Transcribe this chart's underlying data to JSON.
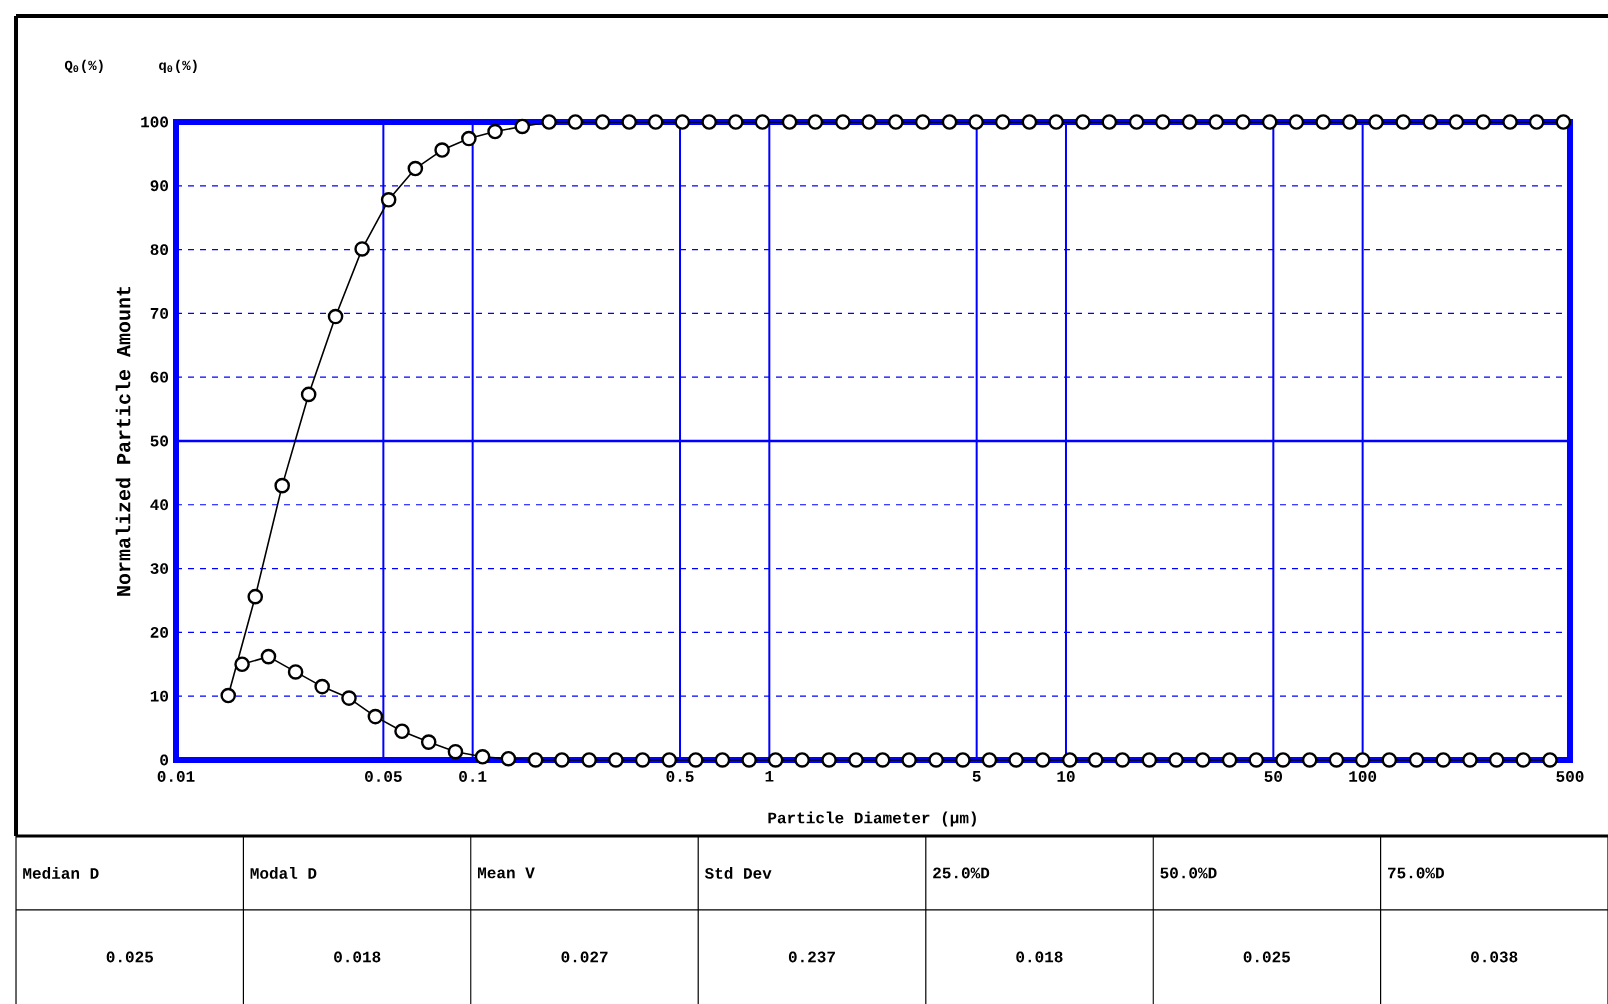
{
  "chart_data": {
    "type": "line",
    "xlabel": "Particle Diameter (µm)",
    "ylabel": "Normalized Particle Amount",
    "xlim": [
      0.01,
      500
    ],
    "ylim": [
      0,
      100
    ],
    "xticks": [
      0.01,
      0.05,
      0.1,
      0.5,
      1,
      5,
      10,
      50,
      100,
      500
    ],
    "yticks": [
      0,
      10,
      20,
      30,
      40,
      50,
      60,
      70,
      80,
      90,
      100
    ],
    "log": "x",
    "grid": true,
    "marker": "circle",
    "line_style": "solid",
    "ref_lines": [
      {
        "axis": "y",
        "value": 50,
        "color": "#0000ff"
      }
    ],
    "series": [
      {
        "color": "#000000",
        "x": [
          0.015,
          0.0185,
          0.0228,
          0.028,
          0.0345,
          0.0424,
          0.0521,
          0.0641,
          0.0789,
          0.0971,
          0.119,
          0.147,
          0.181,
          0.222,
          0.274,
          0.337,
          0.414,
          0.509,
          0.627,
          0.771,
          0.948,
          1.17,
          1.43,
          1.77,
          2.17,
          2.67,
          3.29,
          4.05,
          4.98,
          6.12,
          7.53,
          9.27,
          11.4,
          14.0,
          17.3,
          21.2,
          26.1,
          32.1,
          39.5,
          48.6,
          59.8,
          73.6,
          90.5,
          111,
          137,
          169,
          207,
          255,
          314,
          386,
          475
        ],
        "values": [
          10.1,
          25.6,
          43,
          57.3,
          69.5,
          80.1,
          87.8,
          92.7,
          95.6,
          97.4,
          98.5,
          99.3,
          100,
          100,
          100,
          100,
          100,
          100,
          100,
          100,
          100,
          100,
          100,
          100,
          100,
          100,
          100,
          100,
          100,
          100,
          100,
          100,
          100,
          100,
          100,
          100,
          100,
          100,
          100,
          100,
          100,
          100,
          100,
          100,
          100,
          100,
          100,
          100,
          100,
          100,
          100
        ]
      },
      {
        "color": "#000000",
        "x": [
          0.0167,
          0.0205,
          0.0253,
          0.0311,
          0.0383,
          0.047,
          0.0578,
          0.0711,
          0.0875,
          0.108,
          0.132,
          0.163,
          0.2,
          0.247,
          0.304,
          0.374,
          0.46,
          0.565,
          0.695,
          0.855,
          1.05,
          1.29,
          1.59,
          1.96,
          2.41,
          2.96,
          3.65,
          4.49,
          5.52,
          6.79,
          8.35,
          10.3,
          12.6,
          15.5,
          19.1,
          23.5,
          28.9,
          35.6,
          43.8,
          53.9,
          66.3,
          81.6,
          100,
          123,
          152,
          187,
          230,
          283,
          348,
          428
        ],
        "values": [
          15,
          16.2,
          13.8,
          11.5,
          9.7,
          6.8,
          4.5,
          2.8,
          1.3,
          0.5,
          0.2,
          0,
          0,
          0,
          0,
          0,
          0,
          0,
          0,
          0,
          0,
          0,
          0,
          0,
          0,
          0,
          0,
          0,
          0,
          0,
          0,
          0,
          0,
          0,
          0,
          0,
          0,
          0,
          0,
          0,
          0,
          0,
          0,
          0,
          0,
          0,
          0,
          0,
          0,
          0
        ]
      }
    ],
    "annotations": [
      "Q$_{0}$(%)",
      "q$_{0}$(%)",
      "Median D",
      "Modal D",
      "Mean V",
      "Std Dev",
      "25.0%D",
      "50.0%D",
      "75.0%D",
      "0.025",
      "0.018",
      "0.027",
      "0.237",
      "0.018",
      "0.025",
      "0.038"
    ]
  }
}
